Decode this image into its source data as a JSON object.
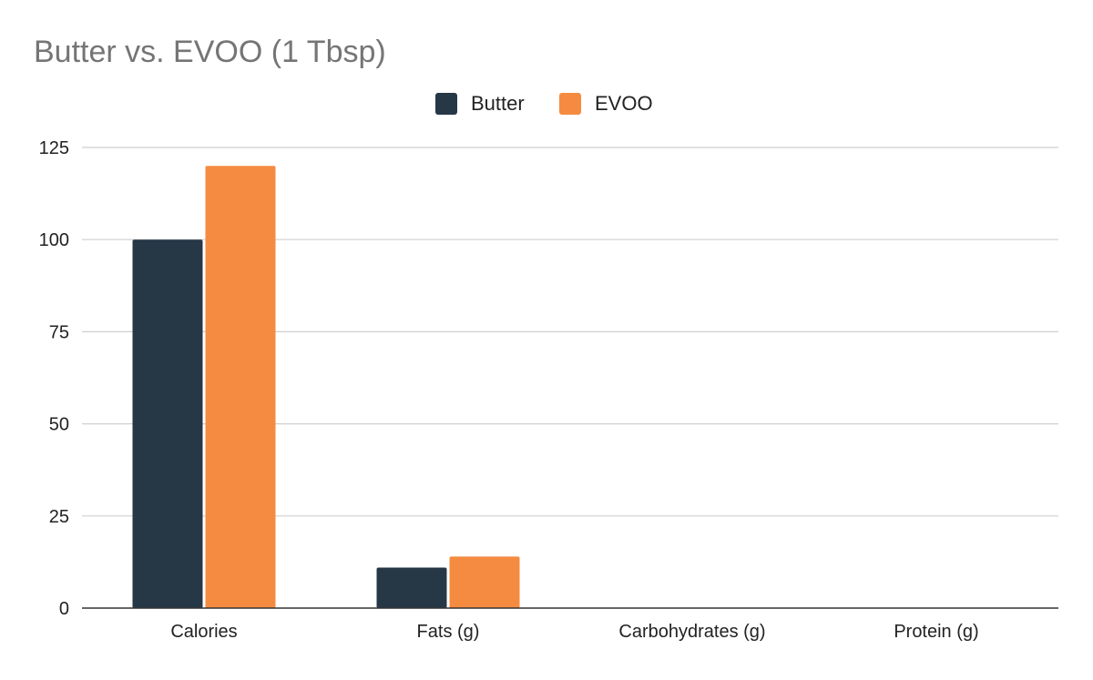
{
  "chart_data": {
    "type": "bar",
    "title": "Butter vs. EVOO (1 Tbsp)",
    "xlabel": "",
    "ylabel": "",
    "categories": [
      "Calories",
      "Fats (g)",
      "Carbohydrates (g)",
      "Protein (g)"
    ],
    "series": [
      {
        "name": "Butter",
        "color": "#263746",
        "values": [
          100,
          11,
          0,
          0
        ]
      },
      {
        "name": "EVOO",
        "color": "#f58b41",
        "values": [
          120,
          14,
          0,
          0
        ]
      }
    ],
    "ylim": [
      0,
      125
    ],
    "yticks": [
      0,
      25,
      50,
      75,
      100,
      125
    ],
    "grid": true,
    "legend_position": "top-center"
  }
}
